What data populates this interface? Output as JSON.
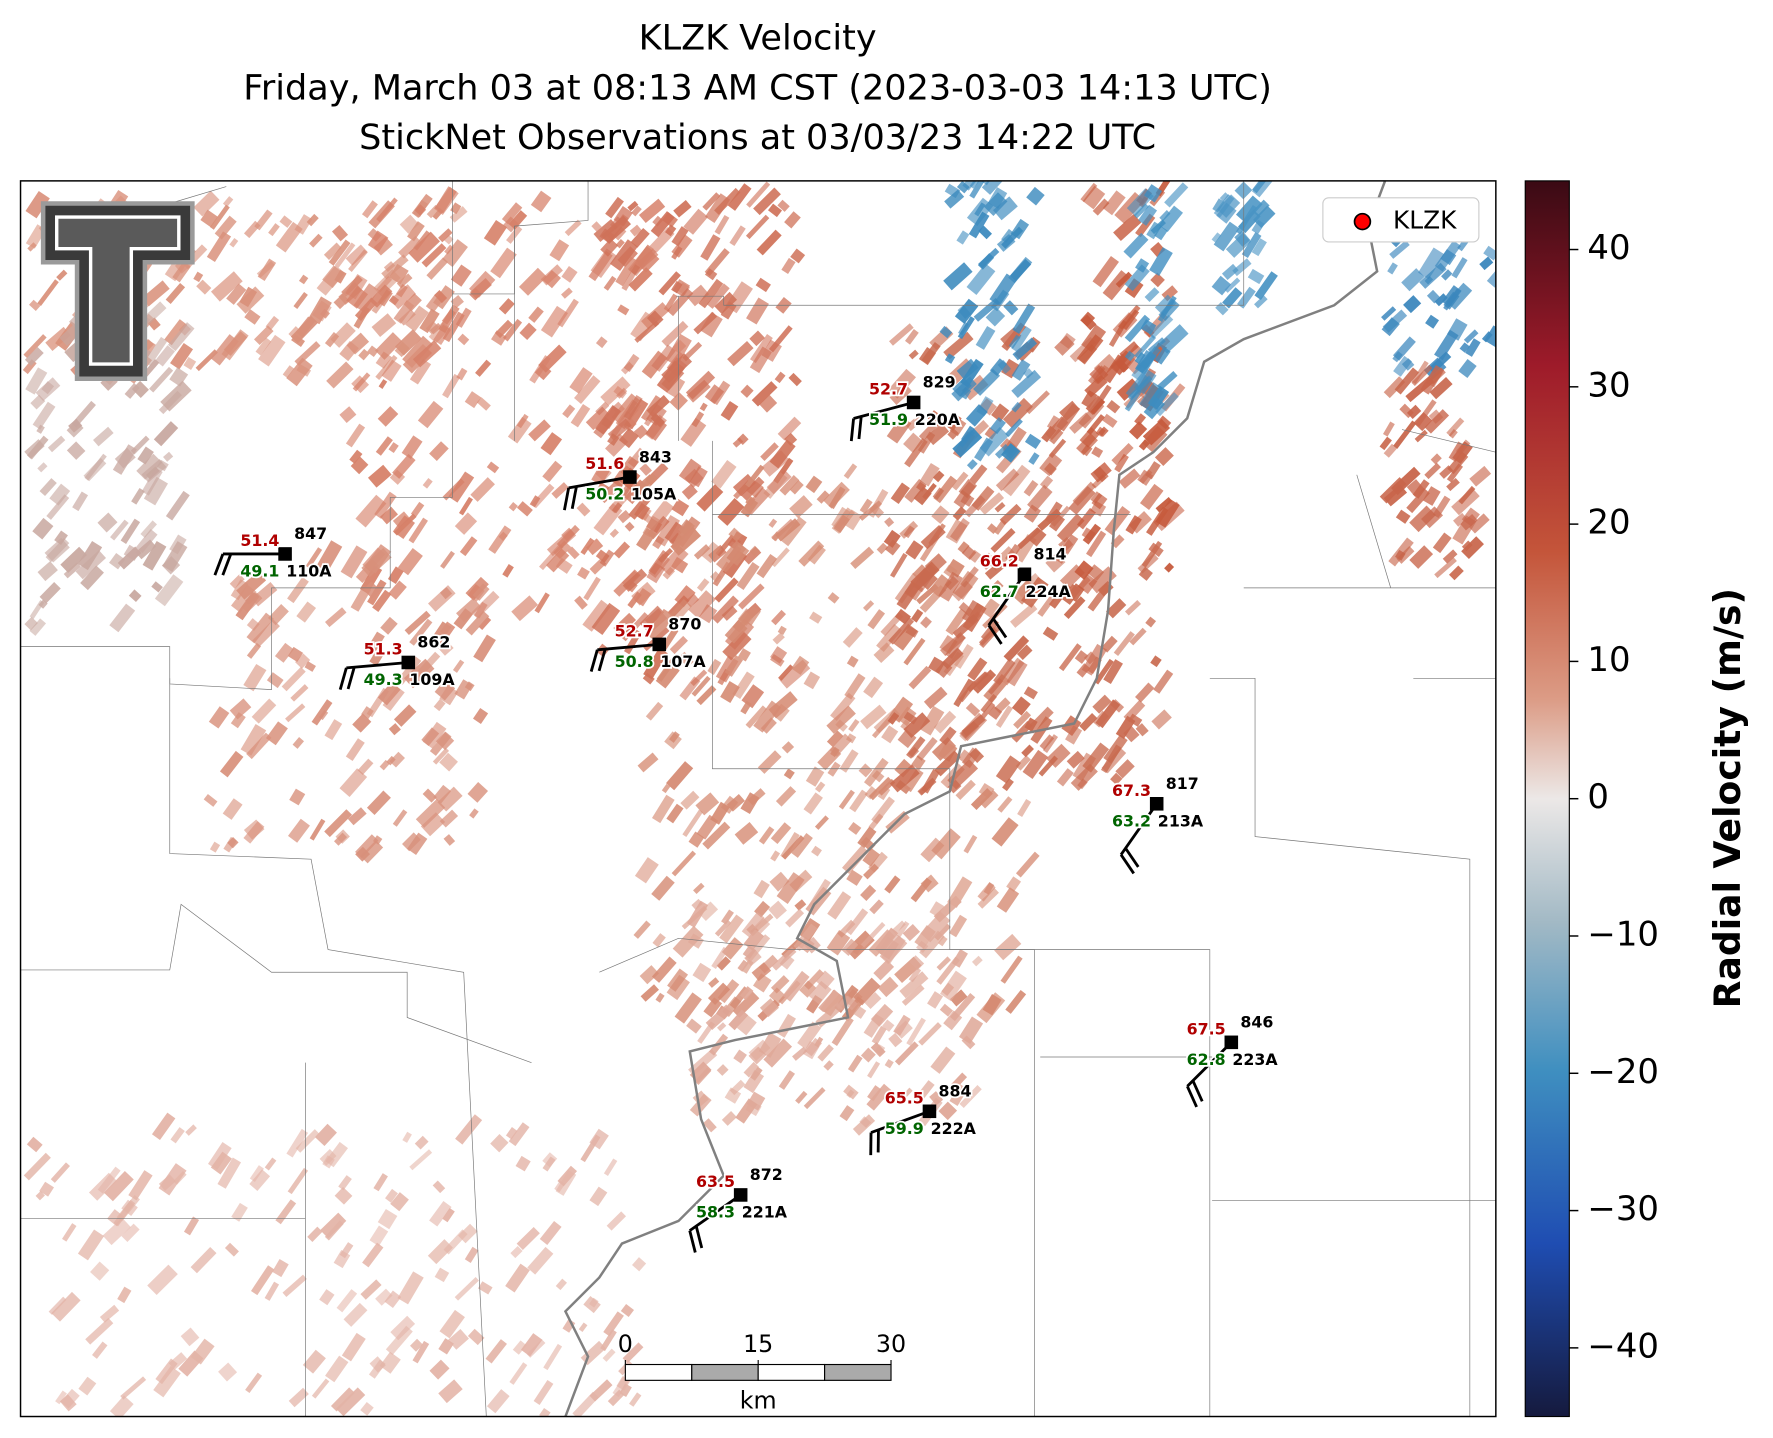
{
  "map": {
    "title": "KLZK Velocity",
    "subtitle": "Friday, March 03 at 08:13 AM CST (2023-03-03 14:13 UTC)",
    "subtitle2": "StickNet Observations at 03/03/23 14:22 UTC",
    "legend": "KLZK",
    "stations": [
      {
        "temperature": 51.4,
        "dewpoint": 49.1,
        "pressure": 847,
        "id": "110A"
      },
      {
        "temperature": 51.3,
        "dewpoint": 49.3,
        "pressure": 862,
        "id": "109A"
      },
      {
        "temperature": 51.6,
        "dewpoint": 50.2,
        "pressure": 843,
        "id": "105A"
      },
      {
        "temperature": 52.7,
        "dewpoint": 50.8,
        "pressure": 870,
        "id": "107A"
      },
      {
        "temperature": 52.7,
        "dewpoint": 51.9,
        "pressure": 829,
        "id": "220A"
      },
      {
        "temperature": 66.2,
        "dewpoint": 62.7,
        "pressure": 814,
        "id": "224A"
      },
      {
        "temperature": 67.3,
        "dewpoint": 63.2,
        "pressure": 817,
        "id": "213A"
      },
      {
        "temperature": 67.5,
        "dewpoint": 62.8,
        "pressure": 846,
        "id": "223A"
      },
      {
        "temperature": 65.5,
        "dewpoint": 59.9,
        "pressure": 884,
        "id": "222A"
      },
      {
        "temperature": 63.5,
        "dewpoint": 58.3,
        "pressure": 872,
        "id": "221A"
      }
    ],
    "colorbar": {
      "label": "Radial Velocity (m/s)",
      "lim": [
        -45,
        45
      ],
      "ticks": [
        {
          "value": -40,
          "label": "−40"
        },
        {
          "value": -30,
          "label": "−30"
        },
        {
          "value": -20,
          "label": "−20"
        },
        {
          "value": -10,
          "label": "−10"
        },
        0,
        10,
        20,
        30,
        40
      ]
    },
    "scale_bar": {
      "lim": [
        0,
        30
      ],
      "ticks": [
        0,
        15,
        30
      ],
      "unit": "km"
    }
  }
}
